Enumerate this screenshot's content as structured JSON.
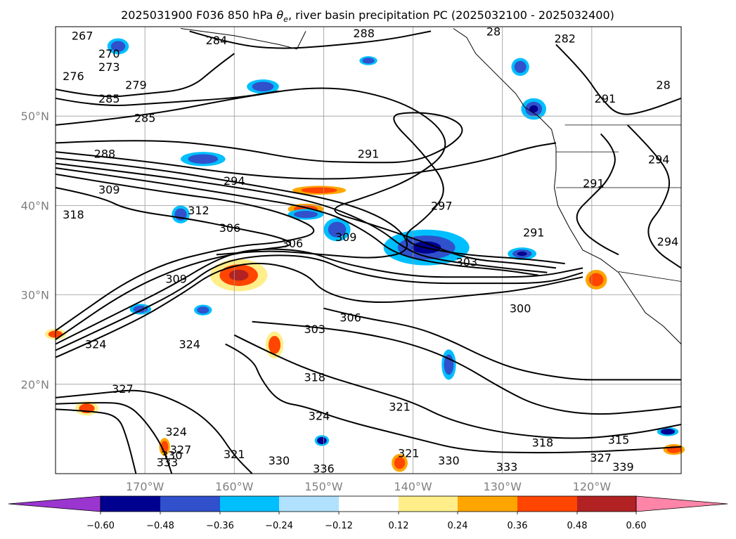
{
  "title": "2025031900 F036 850 hPa θe, river basin precipitation PC (2025032100 - 2025032400)",
  "title_parts": {
    "prefix": "2025031900 F036 850 hPa ",
    "theta": "θ",
    "theta_sub": "e",
    "suffix": ", river basin precipitation PC (2025032100 - 2025032400)"
  },
  "map": {
    "lon_range": [
      -180,
      -110
    ],
    "lat_range": [
      10,
      60
    ],
    "lon_ticks": [
      {
        "value": -170,
        "label": "170°W"
      },
      {
        "value": -160,
        "label": "160°W"
      },
      {
        "value": -150,
        "label": "150°W"
      },
      {
        "value": -140,
        "label": "140°W"
      },
      {
        "value": -130,
        "label": "130°W"
      },
      {
        "value": -120,
        "label": "120°W"
      }
    ],
    "lat_ticks": [
      {
        "value": 20,
        "label": "20°N"
      },
      {
        "value": 30,
        "label": "30°N"
      },
      {
        "value": 40,
        "label": "40°N"
      },
      {
        "value": 50,
        "label": "50°N"
      }
    ],
    "gridlines": true,
    "contour_labels": [
      {
        "text": "267",
        "lon": -177,
        "lat": 59
      },
      {
        "text": "270",
        "lon": -174,
        "lat": 57
      },
      {
        "text": "273",
        "lon": -174,
        "lat": 55.5
      },
      {
        "text": "276",
        "lon": -178,
        "lat": 54.5
      },
      {
        "text": "279",
        "lon": -171,
        "lat": 53.5
      },
      {
        "text": "285",
        "lon": -174,
        "lat": 52
      },
      {
        "text": "285",
        "lon": -170,
        "lat": 49.8
      },
      {
        "text": "288",
        "lon": -174.5,
        "lat": 45.8
      },
      {
        "text": "284",
        "lon": -162,
        "lat": 58.5
      },
      {
        "text": "288",
        "lon": -145.5,
        "lat": 59.3
      },
      {
        "text": "291",
        "lon": -145,
        "lat": 45.8
      },
      {
        "text": "294",
        "lon": -160,
        "lat": 42.8
      },
      {
        "text": "309",
        "lon": -174,
        "lat": 41.8
      },
      {
        "text": "312",
        "lon": -164,
        "lat": 39.5
      },
      {
        "text": "318",
        "lon": -178,
        "lat": 39
      },
      {
        "text": "306",
        "lon": -160.5,
        "lat": 37.5
      },
      {
        "text": "306",
        "lon": -153.5,
        "lat": 35.8
      },
      {
        "text": "309",
        "lon": -147.5,
        "lat": 36.5
      },
      {
        "text": "297",
        "lon": -136.8,
        "lat": 40
      },
      {
        "text": "291",
        "lon": -126.5,
        "lat": 37
      },
      {
        "text": "303",
        "lon": -134,
        "lat": 33.7
      },
      {
        "text": "309",
        "lon": -166.5,
        "lat": 31.8
      },
      {
        "text": "300",
        "lon": -128,
        "lat": 28.5
      },
      {
        "text": "306",
        "lon": -147,
        "lat": 27.5
      },
      {
        "text": "303",
        "lon": -151,
        "lat": 26.2
      },
      {
        "text": "324",
        "lon": -175.5,
        "lat": 24.5
      },
      {
        "text": "324",
        "lon": -165,
        "lat": 24.5
      },
      {
        "text": "318",
        "lon": -151,
        "lat": 20.8
      },
      {
        "text": "327",
        "lon": -172.5,
        "lat": 19.5
      },
      {
        "text": "321",
        "lon": -141.5,
        "lat": 17.5
      },
      {
        "text": "324",
        "lon": -166.5,
        "lat": 14.7
      },
      {
        "text": "324",
        "lon": -150.5,
        "lat": 16.5
      },
      {
        "text": "327",
        "lon": -166,
        "lat": 12.7
      },
      {
        "text": "321",
        "lon": -160,
        "lat": 12.2
      },
      {
        "text": "330",
        "lon": -167,
        "lat": 12.1
      },
      {
        "text": "333",
        "lon": -167.5,
        "lat": 11.3
      },
      {
        "text": "330",
        "lon": -155,
        "lat": 11.5
      },
      {
        "text": "330",
        "lon": -136,
        "lat": 11.5
      },
      {
        "text": "333",
        "lon": -129.5,
        "lat": 10.8
      },
      {
        "text": "318",
        "lon": -125.5,
        "lat": 13.5
      },
      {
        "text": "315",
        "lon": -117,
        "lat": 13.8
      },
      {
        "text": "327",
        "lon": -119,
        "lat": 11.8
      },
      {
        "text": "339",
        "lon": -116.5,
        "lat": 10.8
      },
      {
        "text": "336",
        "lon": -150,
        "lat": 10.6
      },
      {
        "text": "321",
        "lon": -140.5,
        "lat": 12.3
      },
      {
        "text": "291",
        "lon": -119.8,
        "lat": 42.5
      },
      {
        "text": "294",
        "lon": -112.5,
        "lat": 45.2
      },
      {
        "text": "294",
        "lon": -111.5,
        "lat": 36
      },
      {
        "text": "291",
        "lon": -118.5,
        "lat": 52
      },
      {
        "text": "282",
        "lon": -123,
        "lat": 58.7
      },
      {
        "text": "28",
        "lon": -131,
        "lat": 59.5
      },
      {
        "text": "28",
        "lon": -112,
        "lat": 53.5
      }
    ]
  },
  "colorbar": {
    "labels": [
      "−0.60",
      "−0.48",
      "−0.36",
      "−0.24",
      "−0.12",
      "0.12",
      "0.24",
      "0.36",
      "0.48",
      "0.60"
    ],
    "colors": [
      "#9a35d0",
      "#000090",
      "#3050cc",
      "#00bfff",
      "#b0e2ff",
      "#ffffff",
      "#ffee8a",
      "#ffa500",
      "#ff4500",
      "#b22222",
      "#ff85a8"
    ]
  }
}
